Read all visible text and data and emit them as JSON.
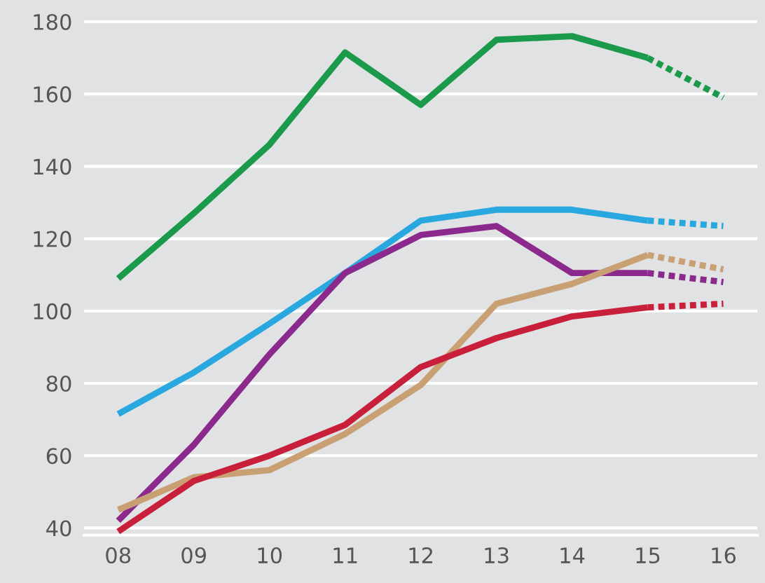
{
  "chart_data": {
    "type": "line",
    "categories": [
      "08",
      "09",
      "10",
      "11",
      "12",
      "13",
      "14",
      "15",
      "16"
    ],
    "ylim": [
      38,
      186
    ],
    "yticks": [
      40,
      60,
      80,
      100,
      120,
      140,
      160,
      180
    ],
    "grid": "y",
    "marker": "none",
    "series": [
      {
        "color": "#1a9a4a",
        "line_style": "solid",
        "values": [
          109,
          127,
          146,
          171.5,
          157,
          175,
          176,
          170,
          null
        ]
      },
      {
        "color": "#1a9a4a",
        "line_style": "dotted",
        "values": [
          null,
          null,
          null,
          null,
          null,
          null,
          null,
          170,
          159
        ]
      },
      {
        "color": "#29a8e0",
        "line_style": "solid",
        "values": [
          71.5,
          83,
          96.5,
          110.5,
          125,
          128,
          128,
          125,
          null
        ]
      },
      {
        "color": "#29a8e0",
        "line_style": "dotted",
        "values": [
          null,
          null,
          null,
          null,
          null,
          null,
          null,
          125,
          123.5
        ]
      },
      {
        "color": "#8b2a8c",
        "line_style": "solid",
        "values": [
          42,
          63,
          88,
          110.5,
          121,
          123.5,
          110.5,
          110.5,
          null
        ]
      },
      {
        "color": "#8b2a8c",
        "line_style": "dotted",
        "values": [
          null,
          null,
          null,
          null,
          null,
          null,
          null,
          110.5,
          108
        ]
      },
      {
        "color": "#c9a074",
        "line_style": "solid",
        "values": [
          45,
          54,
          56,
          66,
          79.5,
          102,
          107.5,
          115.5,
          null
        ]
      },
      {
        "color": "#c9a074",
        "line_style": "dotted",
        "values": [
          null,
          null,
          null,
          null,
          null,
          null,
          null,
          115.5,
          111.5
        ]
      },
      {
        "color": "#c8203a",
        "line_style": "solid",
        "values": [
          39,
          53,
          60,
          68.5,
          84.5,
          92.5,
          98.5,
          101,
          null
        ]
      },
      {
        "color": "#c8203a",
        "line_style": "dotted",
        "values": [
          null,
          null,
          null,
          null,
          null,
          null,
          null,
          101,
          102
        ]
      }
    ]
  }
}
